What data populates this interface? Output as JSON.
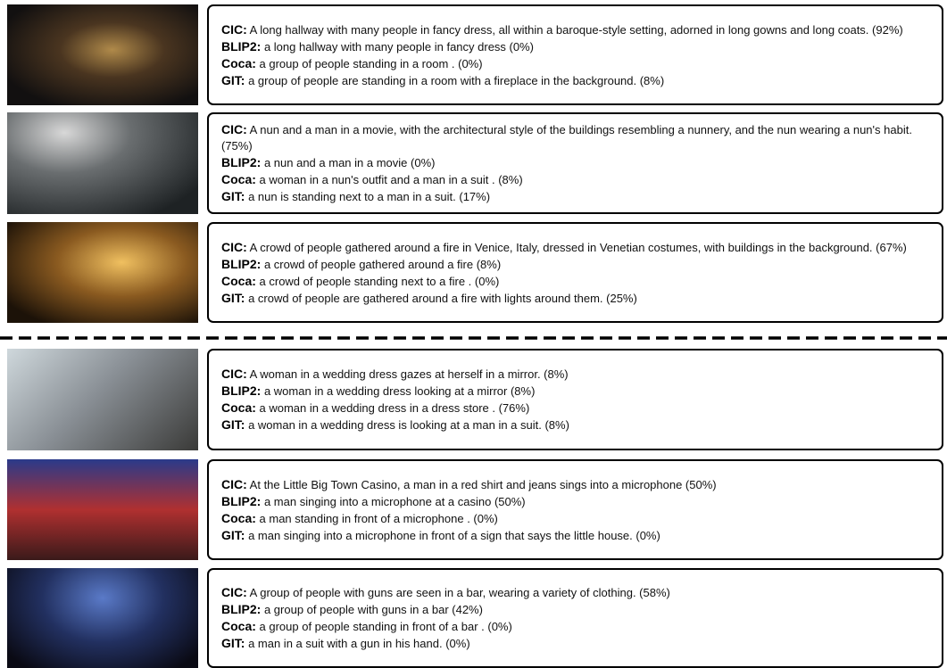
{
  "rows": [
    {
      "captions": [
        {
          "model": "CIC:",
          "text": "A long hallway with many people in fancy dress, all within a baroque-style setting, adorned in long gowns and long coats. (92%)"
        },
        {
          "model": "BLIP2:",
          "text": "a long hallway with many people in fancy dress (0%)"
        },
        {
          "model": "Coca:",
          "text": "a group of people standing in a room . (0%)"
        },
        {
          "model": "GIT:",
          "text": "a group of people are standing in a room with a fireplace in the background. (8%)"
        }
      ]
    },
    {
      "captions": [
        {
          "model": "CIC:",
          "text": "A nun and a man in a movie, with the architectural style of the buildings resembling a nunnery, and the nun wearing a nun's habit. (75%)"
        },
        {
          "model": "BLIP2:",
          "text": "a nun and a man in a movie (0%)"
        },
        {
          "model": "Coca:",
          "text": "a woman in a nun's outfit and a man in a suit . (8%)"
        },
        {
          "model": "GIT:",
          "text": "a nun is standing next to a man in a suit. (17%)"
        }
      ]
    },
    {
      "captions": [
        {
          "model": "CIC:",
          "text": "A crowd of people gathered around a fire in Venice, Italy, dressed in Venetian costumes, with buildings in the background. (67%)"
        },
        {
          "model": "BLIP2:",
          "text": "a crowd of people gathered around a fire (8%)"
        },
        {
          "model": "Coca:",
          "text": "a crowd of people standing next to a fire . (0%)"
        },
        {
          "model": "GIT:",
          "text": "a crowd of people are gathered around a fire with lights around them. (25%)"
        }
      ]
    },
    {
      "captions": [
        {
          "model": "CIC:",
          "text": "A woman in a wedding dress gazes at herself in a mirror. (8%)"
        },
        {
          "model": "BLIP2:",
          "text": "a woman in a wedding dress looking at a mirror (8%)"
        },
        {
          "model": "Coca:",
          "text": "a woman in a wedding dress in a dress store . (76%)"
        },
        {
          "model": "GIT:",
          "text": "a woman in a wedding dress is looking at a man in a suit. (8%)"
        }
      ]
    },
    {
      "captions": [
        {
          "model": "CIC:",
          "text": "At the Little Big Town Casino, a man in a red shirt and jeans sings into a microphone (50%)"
        },
        {
          "model": "BLIP2:",
          "text": "a man singing into a microphone at a casino (50%)"
        },
        {
          "model": "Coca:",
          "text": "a man standing in front of a microphone . (0%)"
        },
        {
          "model": "GIT:",
          "text": "a man singing into a microphone in front of a sign that says the little house. (0%)"
        }
      ]
    },
    {
      "captions": [
        {
          "model": "CIC:",
          "text": "A group of people with guns are seen in a bar, wearing a variety of clothing. (58%)"
        },
        {
          "model": "BLIP2:",
          "text": "a group of people with guns in a bar (42%)"
        },
        {
          "model": "Coca:",
          "text": "a group of people standing in front of a bar . (0%)"
        },
        {
          "model": "GIT:",
          "text": "a man in a suit with a gun in his hand. (0%)"
        }
      ]
    }
  ]
}
